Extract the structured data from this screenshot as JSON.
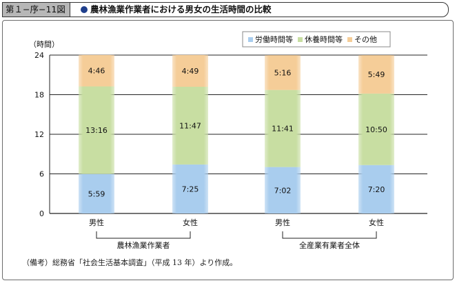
{
  "header": {
    "figure_number": "第１−序−11図",
    "title": "農林漁業作業者における男女の生活時間の比較"
  },
  "note": "（備考）総務省「社会生活基本調査」（平成 13 年）より作成。",
  "colors": {
    "work": "#a9cdee",
    "rest": "#c8dea2",
    "other": "#f5cd98",
    "title_dot": "#1f3f8c",
    "title_tab": "#b7b7b7"
  },
  "chart_data": {
    "type": "bar",
    "stacked": true,
    "title": "農林漁業作業者における男女の生活時間の比較",
    "ylabel": "（時間）",
    "ylim": [
      0,
      24
    ],
    "yticks": [
      "0",
      "6",
      "12",
      "18",
      "24"
    ],
    "grid": true,
    "legend_position": "top-right",
    "categories": [
      "男性",
      "女性",
      "男性",
      "女性"
    ],
    "groups": [
      {
        "label": "農林漁業作業者",
        "categories": [
          "男性",
          "女性"
        ]
      },
      {
        "label": "全産業有業者全体",
        "categories": [
          "男性",
          "女性"
        ]
      }
    ],
    "series": [
      {
        "name": "労働時間等",
        "values": [
          5.983,
          7.417,
          7.033,
          7.333
        ],
        "labels": [
          "5:59",
          "7:25",
          "7:02",
          "7:20"
        ]
      },
      {
        "name": "休養時間等",
        "values": [
          13.267,
          11.783,
          11.683,
          10.833
        ],
        "labels": [
          "13:16",
          "11:47",
          "11:41",
          "10:50"
        ]
      },
      {
        "name": "その他",
        "values": [
          4.767,
          4.817,
          5.267,
          5.817
        ],
        "labels": [
          "4:46",
          "4:49",
          "5:16",
          "5:49"
        ]
      }
    ]
  }
}
